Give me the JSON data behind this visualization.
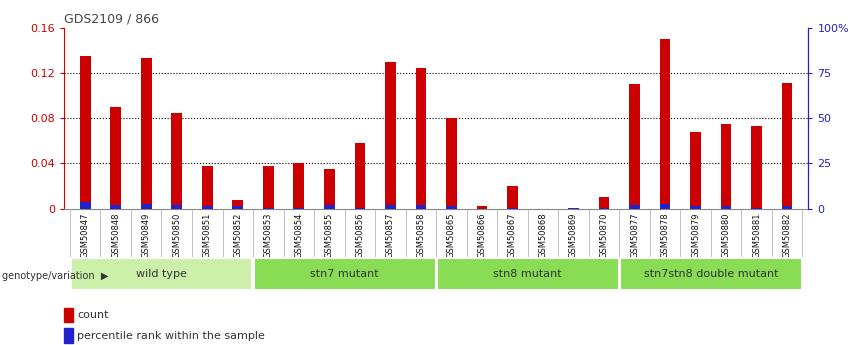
{
  "title": "GDS2109 / 866",
  "samples": [
    "GSM50847",
    "GSM50848",
    "GSM50849",
    "GSM50850",
    "GSM50851",
    "GSM50852",
    "GSM50853",
    "GSM50854",
    "GSM50855",
    "GSM50856",
    "GSM50857",
    "GSM50858",
    "GSM50865",
    "GSM50866",
    "GSM50867",
    "GSM50868",
    "GSM50869",
    "GSM50870",
    "GSM50877",
    "GSM50878",
    "GSM50879",
    "GSM50880",
    "GSM50881",
    "GSM50882"
  ],
  "counts": [
    0.135,
    0.09,
    0.133,
    0.085,
    0.038,
    0.008,
    0.038,
    0.04,
    0.035,
    0.058,
    0.13,
    0.124,
    0.08,
    0.002,
    0.02,
    0.0,
    0.001,
    0.01,
    0.11,
    0.15,
    0.068,
    0.075,
    0.073,
    0.111
  ],
  "percentile": [
    0.006,
    0.003,
    0.004,
    0.003,
    0.002,
    0.002,
    0.001,
    0.001,
    0.003,
    0.001,
    0.003,
    0.003,
    0.002,
    0.0,
    0.001,
    0.0,
    0.001,
    0.001,
    0.003,
    0.004,
    0.002,
    0.002,
    0.001,
    0.002
  ],
  "groups": [
    {
      "label": "wild type",
      "start": 0,
      "end": 5,
      "color": "#c8f0a0"
    },
    {
      "label": "stn7 mutant",
      "start": 6,
      "end": 11,
      "color": "#90e060"
    },
    {
      "label": "stn8 mutant",
      "start": 12,
      "end": 17,
      "color": "#90e060"
    },
    {
      "label": "stn7stn8 double mutant",
      "start": 18,
      "end": 23,
      "color": "#90e060"
    }
  ],
  "bar_color_count": "#cc0000",
  "bar_color_pct": "#2222cc",
  "bar_width": 0.35,
  "ylim_left": [
    0,
    0.16
  ],
  "ylim_right": [
    0,
    100
  ],
  "yticks_left": [
    0,
    0.04,
    0.08,
    0.12,
    0.16
  ],
  "ytick_labels_left": [
    "0",
    "0.04",
    "0.08",
    "0.12",
    "0.16"
  ],
  "yticks_right": [
    0,
    25,
    50,
    75,
    100
  ],
  "ytick_labels_right": [
    "0",
    "25",
    "50",
    "75",
    "100%"
  ],
  "grid_yticks": [
    0.04,
    0.08,
    0.12
  ],
  "bg_color": "#ffffff",
  "label_count": "count",
  "label_pct": "percentile rank within the sample",
  "genotype_label": "genotype/variation"
}
